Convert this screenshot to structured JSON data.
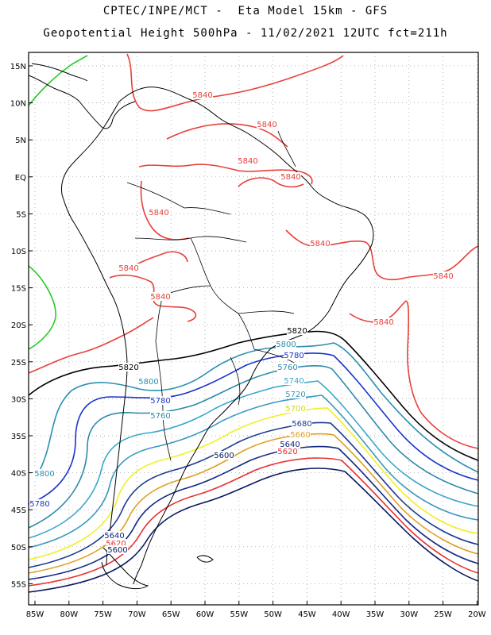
{
  "title": {
    "line1": "CPTEC/INPE/MCT -  Eta Model 15km - GFS",
    "line2": "Geopotential Height 500hPa - 11/02/2021 12UTC fct=211h"
  },
  "axes": {
    "lat_labels": [
      "15N",
      "10N",
      "5N",
      "EQ",
      "5S",
      "10S",
      "15S",
      "20S",
      "25S",
      "30S",
      "35S",
      "40S",
      "45S",
      "50S",
      "55S"
    ],
    "lon_labels": [
      "85W",
      "80W",
      "75W",
      "70W",
      "65W",
      "60W",
      "55W",
      "50W",
      "45W",
      "40W",
      "35W",
      "30W",
      "25W",
      "20W"
    ]
  },
  "colors": {
    "coast": "#000000",
    "grid": "#9a9a9a",
    "c5820": "#000000",
    "c5840": "#e8403a",
    "c5860_green": "#22cc22",
    "c5800": "#2a8fb0",
    "c5780": "#1a33cc",
    "c5760": "#2c8aa8",
    "c5740": "#3aa8c8",
    "c5720": "#3a98c0",
    "c5700": "#f0f020",
    "c5680": "#1a3a90",
    "c5660": "#e0a020",
    "c5640": "#102880",
    "c5620": "#e83030",
    "c5600": "#0a1860"
  },
  "contour_labels": [
    {
      "id": "l5840a",
      "text": "5840"
    },
    {
      "id": "l5840b",
      "text": "5840"
    },
    {
      "id": "l5840c",
      "text": "5840"
    },
    {
      "id": "l5840d",
      "text": "5840"
    },
    {
      "id": "l5840e",
      "text": "5840"
    },
    {
      "id": "l5840f",
      "text": "5840"
    },
    {
      "id": "l5840g",
      "text": "5840"
    },
    {
      "id": "l5840h",
      "text": "5840"
    },
    {
      "id": "l5840i",
      "text": "5840"
    },
    {
      "id": "l5840j",
      "text": "5840"
    },
    {
      "id": "l5820a",
      "text": "5820"
    },
    {
      "id": "l5820b",
      "text": "5820"
    },
    {
      "id": "l5800a",
      "text": "5800"
    },
    {
      "id": "l5800b",
      "text": "5800"
    },
    {
      "id": "l5800c",
      "text": "5800"
    },
    {
      "id": "l5780a",
      "text": "5780"
    },
    {
      "id": "l5780b",
      "text": "5780"
    },
    {
      "id": "l5780c",
      "text": "5780"
    },
    {
      "id": "l5760a",
      "text": "5760"
    },
    {
      "id": "l5760b",
      "text": "5760"
    },
    {
      "id": "l5740a",
      "text": "5740"
    },
    {
      "id": "l5720a",
      "text": "5720"
    },
    {
      "id": "l5700a",
      "text": "5700"
    },
    {
      "id": "l5680a",
      "text": "5680"
    },
    {
      "id": "l5660a",
      "text": "5660"
    },
    {
      "id": "l5640a",
      "text": "5640"
    },
    {
      "id": "l5640b",
      "text": "5640"
    },
    {
      "id": "l5620a",
      "text": "5620"
    },
    {
      "id": "l5620b",
      "text": "5620"
    },
    {
      "id": "l5600a",
      "text": "5600"
    },
    {
      "id": "l5600b",
      "text": "5600"
    }
  ]
}
